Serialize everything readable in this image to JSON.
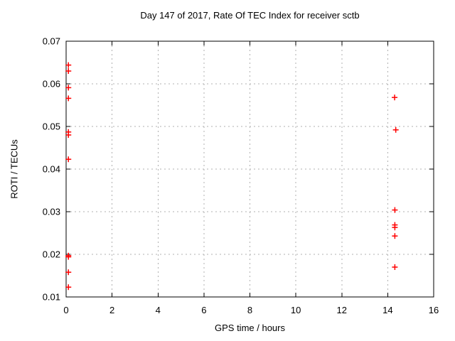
{
  "chart_data": {
    "type": "scatter",
    "title": "Day 147 of 2017, Rate Of TEC Index for receiver sctb",
    "xlabel": "GPS time / hours",
    "ylabel": "ROTI / TECUs",
    "xlim": [
      0,
      16
    ],
    "ylim": [
      0.01,
      0.07
    ],
    "xticks": [
      0,
      2,
      4,
      6,
      8,
      10,
      12,
      14,
      16
    ],
    "yticks": [
      0.01,
      0.02,
      0.03,
      0.04,
      0.05,
      0.06,
      0.07
    ],
    "grid": true,
    "legend": "none",
    "marker": {
      "shape": "plus",
      "color": "#ff0000",
      "size": 8
    },
    "colors": {
      "border": "#000000",
      "gridline": "#b0b0b0",
      "background": "#ffffff"
    },
    "series": [
      {
        "name": "ROTI",
        "points": [
          [
            0.1,
            0.0644
          ],
          [
            0.1,
            0.063
          ],
          [
            0.1,
            0.0591
          ],
          [
            0.1,
            0.0566
          ],
          [
            0.1,
            0.0487
          ],
          [
            0.1,
            0.048
          ],
          [
            0.1,
            0.0423
          ],
          [
            0.1,
            0.0197
          ],
          [
            0.1,
            0.0194
          ],
          [
            0.1,
            0.0158
          ],
          [
            0.1,
            0.0123
          ],
          [
            14.3,
            0.0568
          ],
          [
            14.35,
            0.0492
          ],
          [
            14.31,
            0.0304
          ],
          [
            14.31,
            0.0269
          ],
          [
            14.31,
            0.0263
          ],
          [
            14.31,
            0.0243
          ],
          [
            14.31,
            0.017
          ]
        ]
      }
    ]
  }
}
